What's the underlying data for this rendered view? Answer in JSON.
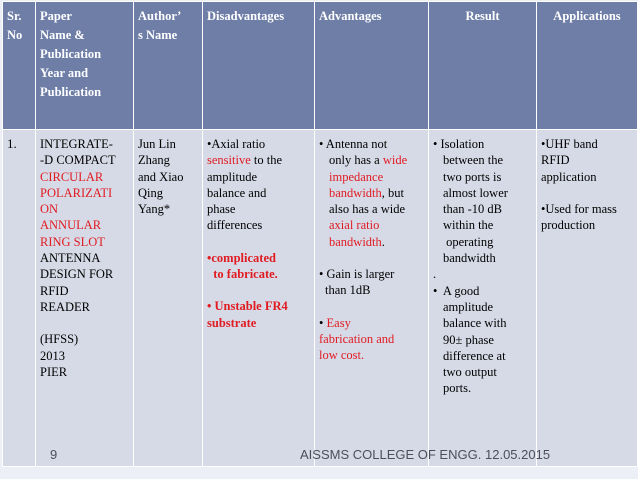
{
  "table": {
    "headers": {
      "sr": [
        "Sr.",
        "No"
      ],
      "paper": [
        "Paper",
        "Name &",
        "Publication",
        "Year and",
        "Publication"
      ],
      "author": [
        "Author’",
        "s Name"
      ],
      "disadvantages": "Disadvantages",
      "advantages": "Advantages",
      "result": "Result",
      "applications": "Applications"
    },
    "row": {
      "sr": "1.",
      "paper_lines": [
        "INTEGRATE-",
        "-D COMPACT",
        "CIRCULAR",
        "POLARIZATI",
        "ON",
        "ANNULAR",
        "RING SLOT",
        "ANTENNA",
        "DESIGN FOR",
        "RFID",
        "READER",
        "",
        "(HFSS)",
        "2013",
        "PIER"
      ],
      "author_lines": [
        "Jun Lin",
        "Zhang",
        "and Xiao",
        "Qing",
        "Yang*"
      ],
      "disadvantages": {
        "d1_pre": "•Axial ratio",
        "d1_red": "sensitive",
        "d1_post": " to the",
        "d1_rest": [
          "amplitude",
          "balance and",
          "phase",
          "differences"
        ],
        "d2": [
          "•complicated",
          "  to fabricate."
        ],
        "d3": "• Unstable FR4",
        "d3b": "substrate"
      },
      "advantages": {
        "a1_lines": [
          "• Antenna not",
          "only has a ",
          "wide",
          "impedance",
          "bandwidth",
          ", but",
          "also has a wide",
          "axial ratio",
          "bandwidth",
          "."
        ],
        "a2": [
          "• Gain is larger",
          "than 1dB"
        ],
        "a3": [
          "• ",
          "Easy",
          "fabrication and",
          "low cost."
        ]
      },
      "result": {
        "r1": [
          "• Isolation",
          "between the",
          "two ports is",
          "almost lower",
          "than -10 dB",
          "within the",
          " operating",
          "bandwidth"
        ],
        "dot": ".",
        "r2": [
          "•  A good",
          "amplitude",
          "balance with",
          "90± phase",
          "difference at",
          "two output",
          "ports."
        ]
      },
      "applications": {
        "ap1": [
          "•UHF band",
          "RFID",
          "application"
        ],
        "ap2": [
          "•Used for mass",
          "production"
        ]
      }
    }
  },
  "footer": {
    "page_number": "9",
    "college": "AISSMS COLLEGE OF ENGG.",
    "date": "12.05.2015"
  }
}
